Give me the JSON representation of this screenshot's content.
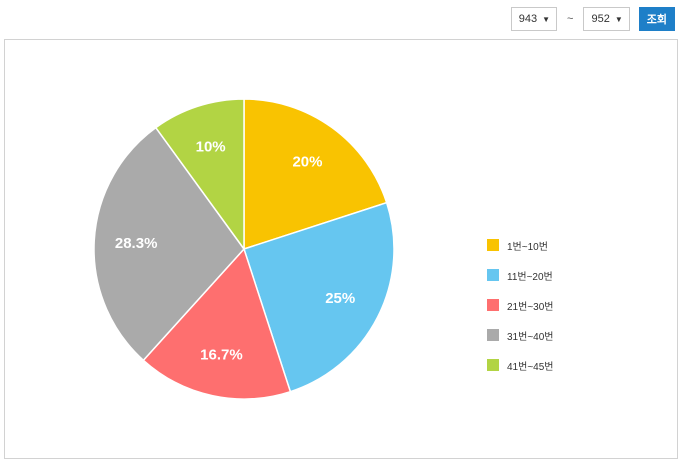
{
  "controls": {
    "from_value": "943",
    "separator": "~",
    "to_value": "952",
    "search_label": "조회"
  },
  "chart_data": {
    "type": "pie",
    "categories": [
      "1번~10번",
      "11번~20번",
      "21번~30번",
      "31번~40번",
      "41번~45번"
    ],
    "values": [
      20,
      25,
      16.7,
      28.3,
      10
    ],
    "value_labels": [
      "20%",
      "25%",
      "16.7%",
      "28.3%",
      "10%"
    ],
    "colors": [
      "#f9c301",
      "#66c6f0",
      "#fe6f6f",
      "#aaaaaa",
      "#b2d444"
    ],
    "legend_position": "right",
    "start": "top",
    "direction": "clockwise"
  }
}
